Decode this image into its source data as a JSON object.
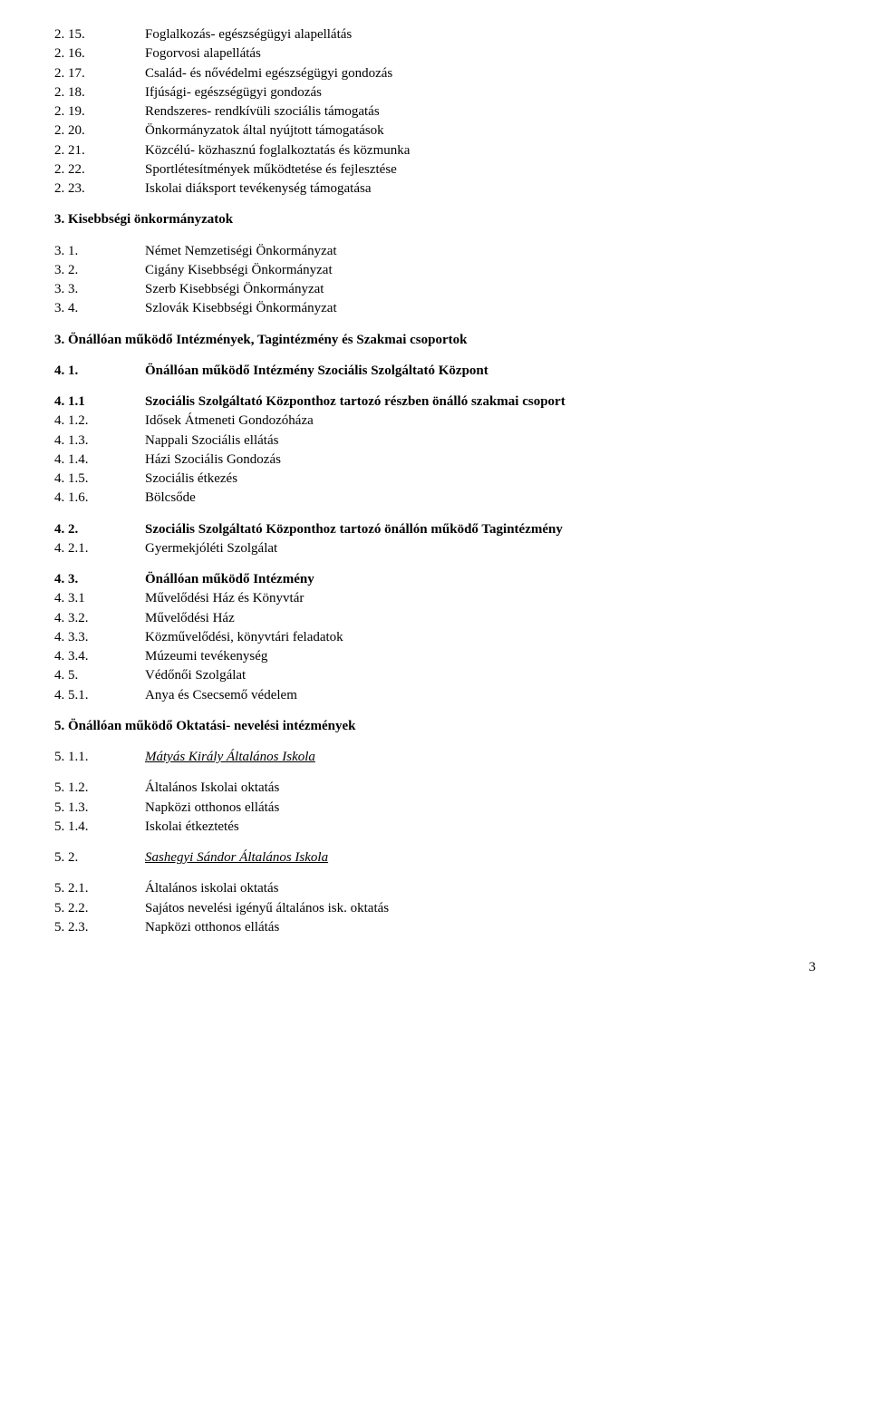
{
  "block1": [
    {
      "n": "2. 15.",
      "t": "Foglalkozás- egészségügyi alapellátás"
    },
    {
      "n": "2. 16.",
      "t": "Fogorvosi alapellátás"
    },
    {
      "n": "2. 17.",
      "t": "Család- és nővédelmi egészségügyi gondozás"
    },
    {
      "n": "2. 18.",
      "t": "Ifjúsági- egészségügyi gondozás"
    },
    {
      "n": "2. 19.",
      "t": "Rendszeres- rendkívüli szociális támogatás"
    },
    {
      "n": "2. 20.",
      "t": "Önkormányzatok által nyújtott támogatások"
    },
    {
      "n": "2. 21.",
      "t": "Közcélú- közhasznú foglalkoztatás és közmunka"
    },
    {
      "n": "2. 22.",
      "t": "Sportlétesítmények működtetése és fejlesztése"
    },
    {
      "n": "2. 23.",
      "t": "Iskolai diáksport tevékenység támogatása"
    }
  ],
  "section3_title": "3.  Kisebbségi önkormányzatok",
  "block2": [
    {
      "n": "3. 1.",
      "t": "Német Nemzetiségi Önkormányzat"
    },
    {
      "n": "3. 2.",
      "t": "Cigány Kisebbségi Önkormányzat"
    },
    {
      "n": "3. 3.",
      "t": "Szerb Kisebbségi Önkormányzat"
    },
    {
      "n": "3. 4.",
      "t": "Szlovák Kisebbségi Önkormányzat"
    }
  ],
  "section3b_title": "3.  Önállóan működő Intézmények, Tagintézmény és Szakmai csoportok",
  "row_41": {
    "n": "4. 1.",
    "t": " Önállóan működő Intézmény Szociális Szolgáltató Központ"
  },
  "block3": [
    {
      "n": "4. 1.1",
      "t": "Szociális Szolgáltató Központhoz tartozó részben önálló szakmai csoport",
      "bold": true
    },
    {
      "n": "4. 1.2.",
      "t": "Idősek Átmeneti Gondozóháza"
    },
    {
      "n": "4. 1.3.",
      "t": "Nappali Szociális ellátás"
    },
    {
      "n": "4. 1.4.",
      "t": "Házi Szociális Gondozás"
    },
    {
      "n": "4. 1.5.",
      "t": "Szociális étkezés"
    },
    {
      "n": "4. 1.6.",
      "t": "Bölcsőde"
    }
  ],
  "block4": [
    {
      "n": "4. 2.",
      "t": "Szociális Szolgáltató Központhoz tartozó önállón működő Tagintézmény",
      "bold": true
    },
    {
      "n": "4. 2.1.",
      "t": "Gyermekjóléti Szolgálat"
    }
  ],
  "block5": [
    {
      "n": "4. 3.",
      "t": "Önállóan működő Intézmény",
      "bold": true
    },
    {
      "n": "4. 3.1",
      "t": "Művelődési Ház és Könyvtár"
    },
    {
      "n": "4. 3.2.",
      "t": "Művelődési Ház"
    },
    {
      "n": "4. 3.3.",
      "t": "Közművelődési, könyvtári feladatok"
    },
    {
      "n": "4. 3.4.",
      "t": "Múzeumi tevékenység"
    },
    {
      "n": "4. 5.",
      "t": "Védőnői Szolgálat"
    },
    {
      "n": "4. 5.1.",
      "t": "Anya és Csecsemő védelem"
    }
  ],
  "section5_title": "5.  Önállóan működő Oktatási- nevelési intézmények",
  "row_511": {
    "n": "5.  1.1.",
    "t": "Mátyás Király Általános Iskola"
  },
  "block6": [
    {
      "n": "5.  1.2.",
      "t": "Általános Iskolai oktatás"
    },
    {
      "n": "5.  1.3.",
      "t": "Napközi otthonos ellátás"
    },
    {
      "n": "5.  1.4.",
      "t": "Iskolai étkeztetés"
    }
  ],
  "row_52": {
    "n": "5.  2.",
    "t": "Sashegyi Sándor Általános Iskola"
  },
  "block7": [
    {
      "n": "5.  2.1.",
      "t": "Általános iskolai oktatás"
    },
    {
      "n": "5.  2.2.",
      "t": "Sajátos nevelési igényű általános isk. oktatás"
    },
    {
      "n": "5.  2.3.",
      "t": "Napközi otthonos ellátás"
    }
  ],
  "page_number": "3"
}
